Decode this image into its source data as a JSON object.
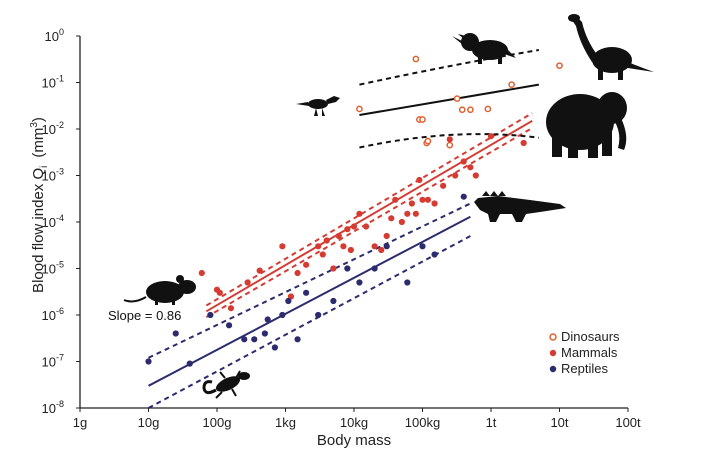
{
  "chart_data": {
    "type": "scatter",
    "x_scale": "log",
    "y_scale": "log",
    "xlabel": "Body mass",
    "ylabel": "Blood flow index  Q",
    "ylabel_subscript": "i",
    "ylabel_unit": "(mm",
    "ylabel_unit_sup": "3",
    "ylabel_unit_close": ")",
    "xlim_grams": [
      1,
      100000000
    ],
    "ylim_mm3": [
      1e-08,
      1
    ],
    "x_tick_labels": [
      "1g",
      "10g",
      "100g",
      "1kg",
      "10kg",
      "100kg",
      "1t",
      "10t",
      "100t"
    ],
    "y_tick_base": "10",
    "y_tick_exponents": [
      "-8",
      "-7",
      "-6",
      "-5",
      "-4",
      "-3",
      "-2",
      "-1",
      "0"
    ],
    "annotation": "Slope = 0.86",
    "legend": [
      "Dinosaurs",
      "Mammals",
      "Reptiles"
    ],
    "legend_position": "bottom-right",
    "colors": {
      "dinosaurs": "#e06030",
      "mammals": "#d63b32",
      "reptiles": "#2b2b6e"
    },
    "series": [
      {
        "name": "Dinosaurs",
        "marker": "open-circle",
        "x": [
          12000,
          80000,
          90000,
          100000,
          115000,
          120000,
          250000,
          320000,
          380000,
          500000,
          900000,
          2000000,
          10000000
        ],
        "y": [
          0.027,
          0.32,
          0.016,
          0.016,
          0.005,
          0.0055,
          0.0045,
          0.045,
          0.026,
          0.026,
          0.027,
          0.09,
          0.23
        ]
      },
      {
        "name": "Mammals",
        "marker": "filled-circle",
        "x": [
          60,
          100,
          110,
          160,
          280,
          420,
          900,
          1200,
          1500,
          2000,
          3000,
          3500,
          4000,
          5000,
          6000,
          7000,
          8000,
          9000,
          10000,
          12000,
          15000,
          20000,
          25000,
          30000,
          35000,
          40000,
          50000,
          60000,
          70000,
          80000,
          90000,
          100000,
          120000,
          150000,
          200000,
          250000,
          300000,
          400000,
          500000,
          600000,
          1000000,
          3000000
        ],
        "y": [
          8e-06,
          3.5e-06,
          3e-06,
          1.4e-06,
          5e-06,
          9e-06,
          3e-05,
          2.5e-06,
          8e-06,
          1.2e-05,
          3e-05,
          2e-05,
          4e-05,
          1e-05,
          5e-05,
          3e-05,
          7e-05,
          2.5e-05,
          8e-05,
          0.00015,
          8e-05,
          3e-05,
          2.5e-05,
          5e-05,
          0.00012,
          0.0003,
          0.0001,
          0.00015,
          0.00025,
          0.00015,
          0.0008,
          0.0003,
          0.0003,
          0.00025,
          0.0006,
          0.006,
          0.001,
          0.002,
          0.0015,
          0.001,
          0.007,
          0.005
        ]
      },
      {
        "name": "Reptiles",
        "marker": "filled-circle",
        "x": [
          10,
          25,
          40,
          80,
          150,
          250,
          350,
          500,
          550,
          700,
          900,
          1100,
          1500,
          2000,
          3000,
          5000,
          8000,
          12000,
          20000,
          30000,
          60000,
          100000,
          150000,
          400000
        ],
        "y": [
          1e-07,
          4e-07,
          9e-08,
          1e-06,
          6e-07,
          3e-07,
          3e-07,
          4e-07,
          8e-07,
          2e-07,
          1e-06,
          2e-06,
          3e-07,
          3e-06,
          1e-06,
          2e-06,
          1e-05,
          5e-06,
          1e-05,
          3e-05,
          5e-06,
          3e-05,
          2e-05,
          0.00035
        ]
      }
    ],
    "fit_lines": [
      {
        "name": "Mammals",
        "style": "solid",
        "x": [
          70,
          4000000
        ],
        "y": [
          1.2e-06,
          0.015
        ]
      },
      {
        "name": "Mammals",
        "style": "dashed",
        "x": [
          70,
          4000000
        ],
        "y": [
          1.6e-06,
          0.022
        ]
      },
      {
        "name": "Mammals",
        "style": "dashed",
        "x": [
          70,
          4000000
        ],
        "y": [
          9e-07,
          0.0105
        ]
      },
      {
        "name": "Reptiles",
        "style": "solid",
        "x": [
          10,
          500000
        ],
        "y": [
          3e-08,
          0.00013
        ]
      },
      {
        "name": "Reptiles",
        "style": "dashed",
        "x": [
          10,
          500000
        ],
        "y": [
          1.2e-07,
          0.00025
        ]
      },
      {
        "name": "Reptiles",
        "style": "dashed",
        "x": [
          10,
          500000
        ],
        "y": [
          1e-08,
          5e-05
        ]
      },
      {
        "name": "Dinosaurs",
        "style": "solid",
        "x": [
          12000,
          5000000
        ],
        "y": [
          0.02,
          0.09
        ]
      },
      {
        "name": "Dinosaurs",
        "style": "dashed",
        "x": [
          12000,
          300000,
          5000000
        ],
        "y": [
          0.09,
          0.25,
          0.5
        ]
      },
      {
        "name": "Dinosaurs",
        "style": "dashed",
        "x": [
          12000,
          300000,
          5000000
        ],
        "y": [
          0.004,
          0.011,
          0.0065
        ]
      }
    ],
    "silhouettes": [
      "mouse-icon",
      "lizard-icon",
      "crocodile-icon",
      "elephant-icon",
      "sauropod-icon",
      "triceratops-icon",
      "theropod-icon"
    ]
  }
}
